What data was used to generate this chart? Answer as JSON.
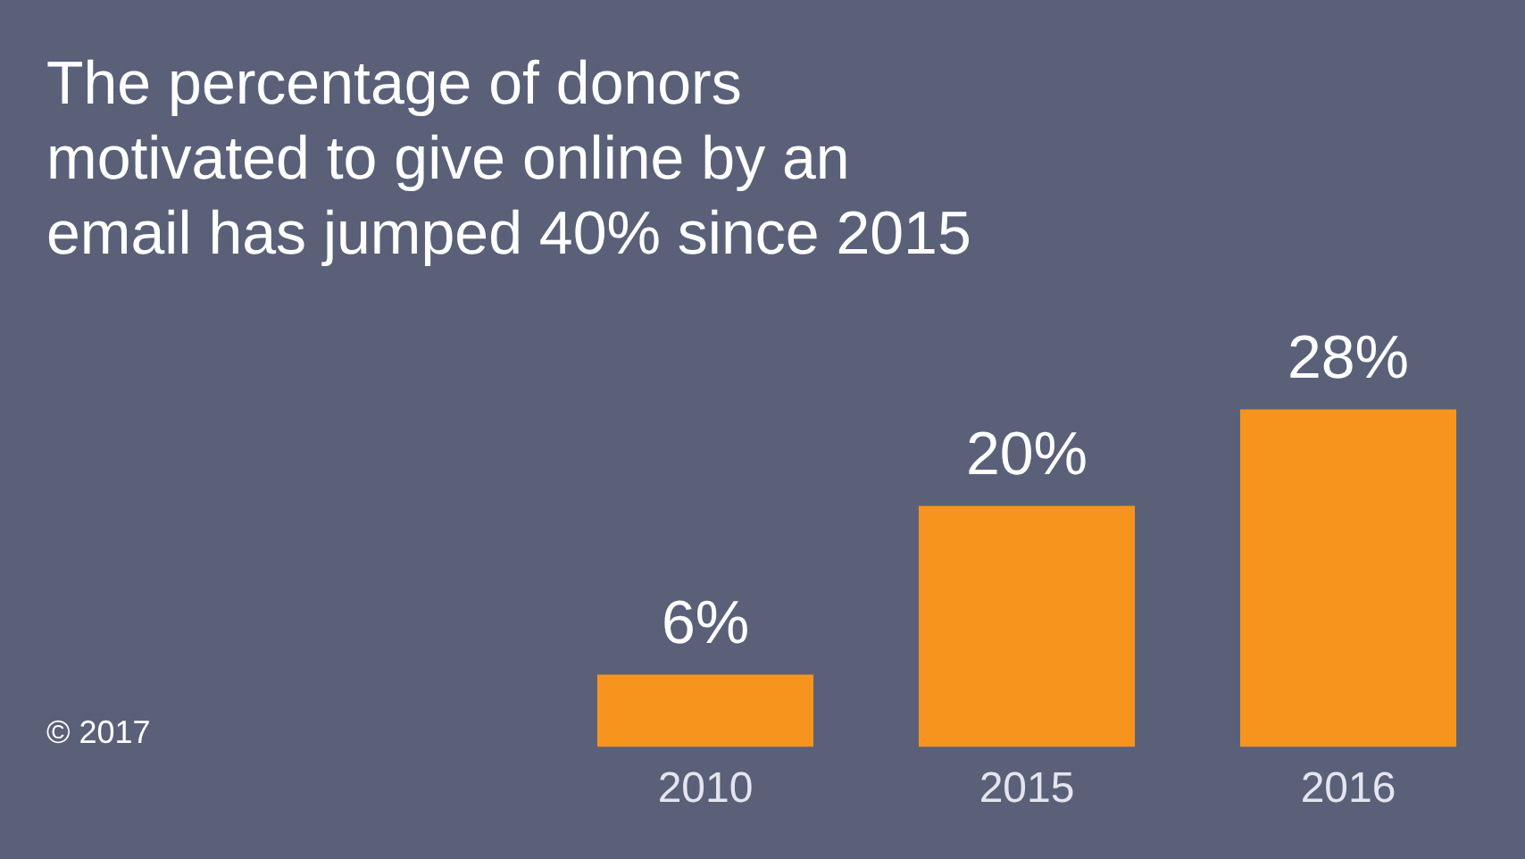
{
  "chart_data": {
    "type": "bar",
    "title": "The percentage of donors motivated to give online by an email has jumped 40% since 2015",
    "categories": [
      "2010",
      "2015",
      "2016"
    ],
    "values": [
      6,
      20,
      28
    ],
    "color": "#f7941d",
    "value_labels": [
      "6%",
      "20%",
      "28%"
    ],
    "tick_labels": "x",
    "annotations": [
      "© 2017"
    ]
  }
}
